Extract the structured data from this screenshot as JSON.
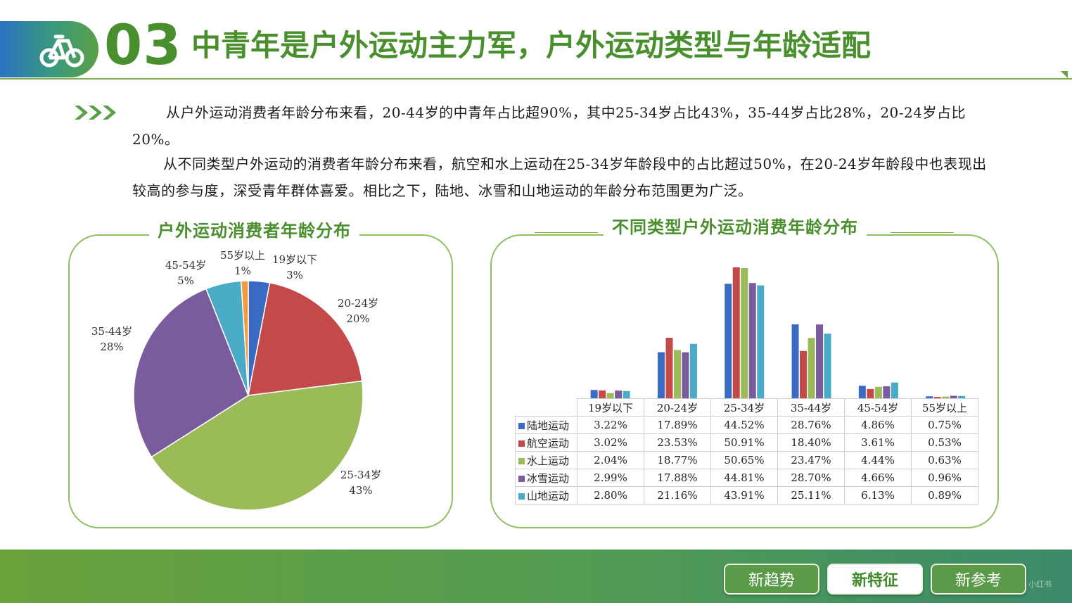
{
  "header": {
    "number": "03",
    "title": "中青年是户外运动主力军，户外运动类型与年龄适配"
  },
  "intro": {
    "p1": "从户外运动消费者年龄分布来看，20-44岁的中青年占比超90%，其中25-34岁占比43%，35-44岁占比28%，20-24岁占比20%。",
    "p2": "从不同类型户外运动的消费者年龄分布来看，航空和水上运动在25-34岁年龄段中的占比超过50%，在20-24岁年龄段中也表现出较高的参与度，深受青年群体喜爱。相比之下，陆地、冰雪和山地运动的年龄分布范围更为广泛。"
  },
  "colors": {
    "pie": [
      "#3a6bc4",
      "#c44a4a",
      "#9bbb58",
      "#7a5c9e",
      "#4aabc6",
      "#f39a3a"
    ],
    "series": [
      "#3a6bc4",
      "#c44a4a",
      "#9bbb58",
      "#7a5c9e",
      "#4aabc6"
    ]
  },
  "chart_data": [
    {
      "type": "pie",
      "title": "户外运动消费者年龄分布",
      "slices": [
        {
          "label": "19岁以下",
          "pct_label": "3%",
          "value": 3
        },
        {
          "label": "20-24岁",
          "pct_label": "20%",
          "value": 20
        },
        {
          "label": "25-34岁",
          "pct_label": "43%",
          "value": 43
        },
        {
          "label": "35-44岁",
          "pct_label": "28%",
          "value": 28
        },
        {
          "label": "45-54岁",
          "pct_label": "5%",
          "value": 5
        },
        {
          "label": "55岁以上",
          "pct_label": "1%",
          "value": 1
        }
      ]
    },
    {
      "type": "bar",
      "title": "不同类型户外运动消费年龄分布",
      "categories": [
        "19岁以下",
        "20-24岁",
        "25-34岁",
        "35-44岁",
        "45-54岁",
        "55岁以上"
      ],
      "series": [
        {
          "name": "陆地运动",
          "values": [
            3.22,
            17.89,
            44.52,
            28.76,
            4.86,
            0.75
          ],
          "labels": [
            "3.22%",
            "17.89%",
            "44.52%",
            "28.76%",
            "4.86%",
            "0.75%"
          ]
        },
        {
          "name": "航空运动",
          "values": [
            3.02,
            23.53,
            50.91,
            18.4,
            3.61,
            0.53
          ],
          "labels": [
            "3.02%",
            "23.53%",
            "50.91%",
            "18.40%",
            "3.61%",
            "0.53%"
          ]
        },
        {
          "name": "水上运动",
          "values": [
            2.04,
            18.77,
            50.65,
            23.47,
            4.44,
            0.63
          ],
          "labels": [
            "2.04%",
            "18.77%",
            "50.65%",
            "23.47%",
            "4.44%",
            "0.63%"
          ]
        },
        {
          "name": "冰雪运动",
          "values": [
            2.99,
            17.88,
            44.81,
            28.7,
            4.66,
            0.96
          ],
          "labels": [
            "2.99%",
            "17.88%",
            "44.81%",
            "28.70%",
            "4.66%",
            "0.96%"
          ]
        },
        {
          "name": "山地运动",
          "values": [
            2.8,
            21.16,
            43.91,
            25.11,
            6.13,
            0.89
          ],
          "labels": [
            "2.80%",
            "21.16%",
            "43.91%",
            "25.11%",
            "6.13%",
            "0.89%"
          ]
        }
      ],
      "ylim": [
        0,
        52
      ],
      "legend": "table-left"
    }
  ],
  "nav": {
    "items": [
      "新趋势",
      "新特征",
      "新参考"
    ],
    "active_index": 1
  },
  "watermark": "小红书"
}
